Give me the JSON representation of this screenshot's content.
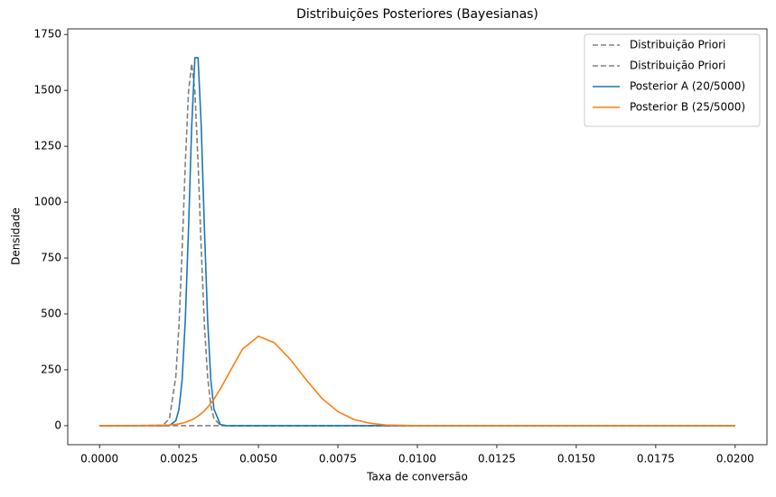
{
  "chart_data": {
    "type": "line",
    "title": "Distribuições Posteriores (Bayesianas)",
    "x_label": "Taxa de conversão",
    "y_label": "Densidade",
    "x": [
      0,
      0.001,
      0.002,
      0.0022,
      0.0024,
      0.0025,
      0.0026,
      0.0027,
      0.0028,
      0.0029,
      0.003,
      0.0031,
      0.0032,
      0.0033,
      0.0034,
      0.0035,
      0.0036,
      0.0038,
      0.004,
      0.0045,
      0.005,
      0.0055,
      0.006,
      0.0065,
      0.007,
      0.0075,
      0.008,
      0.0085,
      0.009,
      0.01,
      0.012,
      0.015,
      0.02
    ],
    "series": [
      {
        "name": "Distribuição Priori",
        "color": "#808080",
        "dashed": true,
        "values": [
          0,
          0,
          2,
          32,
          219,
          450,
          789,
          1177,
          1495,
          1620,
          1495,
          1177,
          789,
          450,
          219,
          91,
          32,
          2,
          0,
          0,
          0,
          0,
          0,
          0,
          0,
          0,
          0,
          0,
          0,
          0,
          0,
          0,
          0
        ]
      },
      {
        "name": "Distribuição Priori",
        "color": "#808080",
        "dashed": true,
        "values": [
          0,
          0,
          0,
          0,
          0,
          0,
          0,
          0,
          0,
          0,
          0,
          0,
          0,
          0,
          0,
          0,
          0,
          0,
          0,
          0,
          0,
          0,
          0,
          0,
          0,
          0,
          0,
          0,
          0,
          0,
          0,
          0,
          0
        ]
      },
      {
        "name": "Posterior A (20/5000)",
        "color": "#1f77b4",
        "dashed": false,
        "values": [
          0,
          0,
          0,
          1,
          22,
          74,
          207,
          477,
          882,
          1340,
          1646,
          1646,
          1340,
          882,
          477,
          207,
          74,
          5,
          0,
          0,
          0,
          0,
          0,
          0,
          0,
          0,
          0,
          0,
          0,
          0,
          0,
          0,
          0
        ]
      },
      {
        "name": "Posterior B (25/5000)",
        "color": "#ff7f0e",
        "dashed": false,
        "values": [
          0,
          0,
          2,
          3,
          6,
          8,
          11,
          15,
          20,
          26,
          34,
          43,
          54,
          67,
          82,
          100,
          119,
          164,
          216,
          343,
          400,
          371,
          297,
          206,
          122,
          63,
          28,
          11,
          3,
          0,
          0,
          0,
          0
        ]
      }
    ],
    "xlim": [
      -0.001,
      0.021
    ],
    "xticks": [
      {
        "value": 0,
        "label": "0.0000"
      },
      {
        "value": 0.0025,
        "label": "0.0025"
      },
      {
        "value": 0.005,
        "label": "0.0050"
      },
      {
        "value": 0.0075,
        "label": "0.0075"
      },
      {
        "value": 0.01,
        "label": "0.0100"
      },
      {
        "value": 0.0125,
        "label": "0.0125"
      },
      {
        "value": 0.015,
        "label": "0.0150"
      },
      {
        "value": 0.0175,
        "label": "0.0175"
      },
      {
        "value": 0.02,
        "label": "0.0200"
      }
    ],
    "ylim": [
      -85,
      1775
    ],
    "yticks": [
      0,
      250,
      500,
      750,
      1000,
      1250,
      1500,
      1750
    ],
    "legend": "upper-right"
  }
}
